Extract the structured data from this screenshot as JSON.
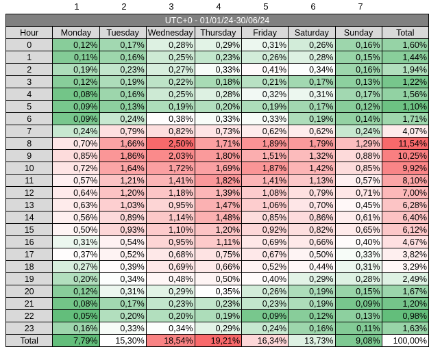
{
  "column_numbers": [
    "1",
    "2",
    "3",
    "4",
    "5",
    "6",
    "7"
  ],
  "table": {
    "title": "UTC+0 - 01/01/24-30/06/24",
    "header": [
      "Hour",
      "Monday",
      "Tuesday",
      "Wednesday",
      "Thursday",
      "Friday",
      "Saturday",
      "Sunday",
      "Total"
    ],
    "rows": [
      {
        "hour": "0",
        "values": [
          "0,12%",
          "0,17%",
          "0,28%",
          "0,29%",
          "0,31%",
          "0,26%",
          "0,16%"
        ],
        "total": "1,60%"
      },
      {
        "hour": "1",
        "values": [
          "0,11%",
          "0,16%",
          "0,25%",
          "0,23%",
          "0,26%",
          "0,28%",
          "0,15%"
        ],
        "total": "1,44%"
      },
      {
        "hour": "2",
        "values": [
          "0,19%",
          "0,23%",
          "0,27%",
          "0,33%",
          "0,41%",
          "0,34%",
          "0,16%"
        ],
        "total": "1,94%"
      },
      {
        "hour": "3",
        "values": [
          "0,12%",
          "0,19%",
          "0,22%",
          "0,18%",
          "0,21%",
          "0,17%",
          "0,13%"
        ],
        "total": "1,22%"
      },
      {
        "hour": "4",
        "values": [
          "0,08%",
          "0,16%",
          "0,25%",
          "0,28%",
          "0,32%",
          "0,31%",
          "0,17%"
        ],
        "total": "1,56%"
      },
      {
        "hour": "5",
        "values": [
          "0,09%",
          "0,13%",
          "0,19%",
          "0,20%",
          "0,19%",
          "0,17%",
          "0,12%"
        ],
        "total": "1,10%"
      },
      {
        "hour": "6",
        "values": [
          "0,09%",
          "0,24%",
          "0,38%",
          "0,33%",
          "0,33%",
          "0,19%",
          "0,14%"
        ],
        "total": "1,71%"
      },
      {
        "hour": "7",
        "values": [
          "0,24%",
          "0,79%",
          "0,82%",
          "0,73%",
          "0,62%",
          "0,62%",
          "0,24%"
        ],
        "total": "4,07%"
      },
      {
        "hour": "8",
        "values": [
          "0,70%",
          "1,66%",
          "2,50%",
          "1,71%",
          "1,89%",
          "1,79%",
          "1,29%"
        ],
        "total": "11,54%"
      },
      {
        "hour": "9",
        "values": [
          "0,85%",
          "1,86%",
          "2,03%",
          "1,80%",
          "1,51%",
          "1,32%",
          "0,88%"
        ],
        "total": "10,25%"
      },
      {
        "hour": "10",
        "values": [
          "0,72%",
          "1,64%",
          "1,72%",
          "1,69%",
          "1,87%",
          "1,42%",
          "0,85%"
        ],
        "total": "9,92%"
      },
      {
        "hour": "11",
        "values": [
          "0,57%",
          "1,21%",
          "1,41%",
          "1,82%",
          "1,41%",
          "1,13%",
          "0,57%"
        ],
        "total": "8,10%"
      },
      {
        "hour": "12",
        "values": [
          "0,64%",
          "1,20%",
          "1,18%",
          "1,39%",
          "1,08%",
          "0,79%",
          "0,71%"
        ],
        "total": "7,00%"
      },
      {
        "hour": "13",
        "values": [
          "0,63%",
          "1,03%",
          "0,95%",
          "1,47%",
          "1,06%",
          "0,70%",
          "0,45%"
        ],
        "total": "6,28%"
      },
      {
        "hour": "14",
        "values": [
          "0,56%",
          "0,89%",
          "1,14%",
          "1,48%",
          "0,85%",
          "0,86%",
          "0,61%"
        ],
        "total": "6,40%"
      },
      {
        "hour": "15",
        "values": [
          "0,50%",
          "0,93%",
          "1,10%",
          "1,20%",
          "0,92%",
          "0,82%",
          "0,65%"
        ],
        "total": "6,12%"
      },
      {
        "hour": "16",
        "values": [
          "0,31%",
          "0,54%",
          "0,95%",
          "1,11%",
          "0,69%",
          "0,66%",
          "0,40%"
        ],
        "total": "4,67%"
      },
      {
        "hour": "17",
        "values": [
          "0,37%",
          "0,52%",
          "0,68%",
          "0,75%",
          "0,67%",
          "0,50%",
          "0,33%"
        ],
        "total": "3,82%"
      },
      {
        "hour": "18",
        "values": [
          "0,27%",
          "0,39%",
          "0,69%",
          "0,66%",
          "0,52%",
          "0,44%",
          "0,31%"
        ],
        "total": "3,29%"
      },
      {
        "hour": "19",
        "values": [
          "0,20%",
          "0,34%",
          "0,48%",
          "0,50%",
          "0,40%",
          "0,29%",
          "0,28%"
        ],
        "total": "2,49%"
      },
      {
        "hour": "20",
        "values": [
          "0,12%",
          "0,31%",
          "0,29%",
          "0,35%",
          "0,26%",
          "0,19%",
          "0,15%"
        ],
        "total": "1,67%"
      },
      {
        "hour": "21",
        "values": [
          "0,08%",
          "0,17%",
          "0,23%",
          "0,23%",
          "0,23%",
          "0,19%",
          "0,09%"
        ],
        "total": "1,20%"
      },
      {
        "hour": "22",
        "values": [
          "0,05%",
          "0,20%",
          "0,20%",
          "0,19%",
          "0,09%",
          "0,12%",
          "0,13%"
        ],
        "total": "0,98%"
      },
      {
        "hour": "23",
        "values": [
          "0,16%",
          "0,33%",
          "0,34%",
          "0,29%",
          "0,24%",
          "0,16%",
          "0,11%"
        ],
        "total": "1,63%"
      }
    ],
    "total_row": {
      "label": "Total",
      "values": [
        "7,79%",
        "15,30%",
        "18,54%",
        "19,21%",
        "16,34%",
        "13,73%",
        "9,08%"
      ],
      "total": "100,00%"
    }
  },
  "colors": {
    "header_gray": "#d9d9d9",
    "title_gray": "#808080",
    "green_strong": "#63be7b",
    "neutral_white": "#ffffff",
    "red_strong": "#f8696b"
  }
}
